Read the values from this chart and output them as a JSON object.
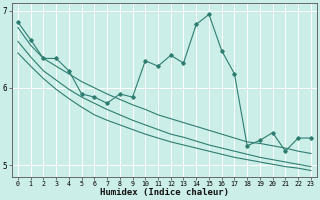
{
  "xlabel": "Humidex (Indice chaleur)",
  "bg_color": "#cceee8",
  "grid_color": "#ffffff",
  "line_color": "#2e7d70",
  "x_values": [
    0,
    1,
    2,
    3,
    4,
    5,
    6,
    7,
    8,
    9,
    10,
    11,
    12,
    13,
    14,
    15,
    16,
    17,
    18,
    19,
    20,
    21,
    22,
    23
  ],
  "main_line": [
    6.85,
    6.62,
    6.38,
    6.38,
    6.22,
    5.92,
    5.88,
    5.8,
    5.92,
    5.88,
    6.35,
    6.28,
    6.42,
    6.32,
    6.82,
    6.95,
    6.48,
    6.18,
    5.25,
    5.32,
    5.42,
    5.18,
    5.35,
    5.35
  ],
  "trend1": [
    6.78,
    6.55,
    6.38,
    6.28,
    6.18,
    6.08,
    6.0,
    5.92,
    5.85,
    5.78,
    5.72,
    5.65,
    5.6,
    5.55,
    5.5,
    5.45,
    5.4,
    5.35,
    5.3,
    5.28,
    5.25,
    5.22,
    5.18,
    5.15
  ],
  "trend2": [
    6.6,
    6.4,
    6.22,
    6.1,
    5.98,
    5.88,
    5.8,
    5.72,
    5.65,
    5.58,
    5.52,
    5.46,
    5.4,
    5.36,
    5.31,
    5.26,
    5.22,
    5.18,
    5.14,
    5.1,
    5.07,
    5.04,
    5.01,
    4.98
  ],
  "trend3": [
    6.45,
    6.28,
    6.12,
    5.98,
    5.86,
    5.75,
    5.65,
    5.58,
    5.52,
    5.46,
    5.4,
    5.35,
    5.3,
    5.26,
    5.22,
    5.18,
    5.14,
    5.1,
    5.07,
    5.04,
    5.01,
    4.98,
    4.96,
    4.93
  ],
  "ylim": [
    4.85,
    7.1
  ],
  "yticks": [
    5,
    6,
    7
  ],
  "xticks": [
    0,
    1,
    2,
    3,
    4,
    5,
    6,
    7,
    8,
    9,
    10,
    11,
    12,
    13,
    14,
    15,
    16,
    17,
    18,
    19,
    20,
    21,
    22,
    23
  ]
}
